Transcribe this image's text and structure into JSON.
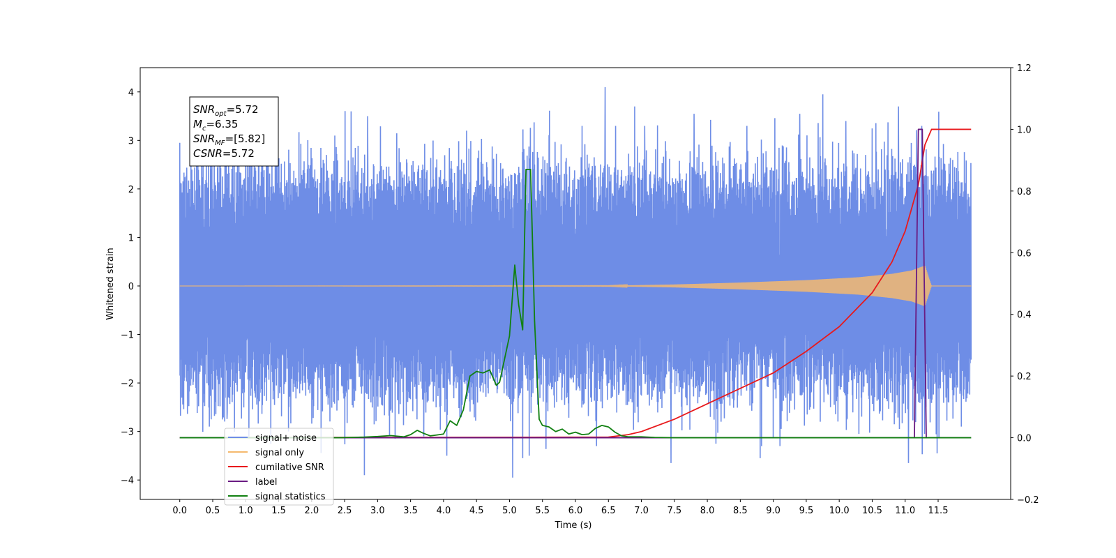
{
  "chart_data": {
    "type": "line",
    "xlabel": "Time (s)",
    "ylabel": "Whitened strain",
    "xlim": [
      -0.6,
      12.6
    ],
    "ylim": [
      -4.4,
      4.5
    ],
    "y2lim": [
      -0.2,
      1.2
    ],
    "x_ticks": [
      0.0,
      0.5,
      1.0,
      1.5,
      2.0,
      2.5,
      3.0,
      3.5,
      4.0,
      4.5,
      5.0,
      5.5,
      6.0,
      6.5,
      7.0,
      7.5,
      8.0,
      8.5,
      9.0,
      9.5,
      10.0,
      10.5,
      11.0,
      11.5
    ],
    "x_tick_labels": [
      "0.0",
      "0.5",
      "1.0",
      "1.5",
      "2.0",
      "2.5",
      "3.0",
      "3.5",
      "4.0",
      "4.5",
      "5.0",
      "5.5",
      "6.0",
      "6.5",
      "7.0",
      "7.5",
      "8.0",
      "8.5",
      "9.0",
      "9.5",
      "10.0",
      "10.5",
      "11.0",
      "11.5"
    ],
    "y_ticks": [
      -4,
      -3,
      -2,
      -1,
      0,
      1,
      2,
      3,
      4
    ],
    "y_tick_labels": [
      "−4",
      "−3",
      "−2",
      "−1",
      "0",
      "1",
      "2",
      "3",
      "4"
    ],
    "y2_ticks": [
      -0.2,
      0.0,
      0.2,
      0.4,
      0.6,
      0.8,
      1.0,
      1.2
    ],
    "y2_tick_labels": [
      "−0.2",
      "0.0",
      "0.2",
      "0.4",
      "0.6",
      "0.8",
      "1.0",
      "1.2"
    ],
    "grid": false,
    "legend_position": "lower-left",
    "annotation": {
      "lines": [
        {
          "sym": "SNR",
          "sub": "opt",
          "value": "=5.72"
        },
        {
          "sym": "M",
          "sub": "c",
          "value": "=6.35"
        },
        {
          "sym": "SNR",
          "sub": "MF",
          "value": "=[5.82]"
        },
        {
          "sym": "CSNR",
          "sub": "",
          "value": "=5.72"
        }
      ]
    },
    "series": [
      {
        "name": "signal+ noise",
        "color": "#6e8de6",
        "axis": "left",
        "kind": "noise",
        "x_range": [
          0.0,
          12.0
        ],
        "band": [
          -2.1,
          2.7
        ],
        "peaks": [
          {
            "x": 0.0,
            "y": 2.95
          },
          {
            "x": 0.45,
            "y": -2.9
          },
          {
            "x": 0.72,
            "y": -2.6
          },
          {
            "x": 1.2,
            "y": 2.8
          },
          {
            "x": 1.65,
            "y": -3.0
          },
          {
            "x": 2.35,
            "y": 3.1
          },
          {
            "x": 2.6,
            "y": 3.6
          },
          {
            "x": 2.8,
            "y": -3.9
          },
          {
            "x": 2.85,
            "y": 3.5
          },
          {
            "x": 3.7,
            "y": -3.1
          },
          {
            "x": 4.05,
            "y": -3.5
          },
          {
            "x": 4.35,
            "y": 3.2
          },
          {
            "x": 5.05,
            "y": -3.95
          },
          {
            "x": 5.2,
            "y": -3.55
          },
          {
            "x": 5.3,
            "y": -3.5
          },
          {
            "x": 6.1,
            "y": 3.3
          },
          {
            "x": 6.32,
            "y": -3.3
          },
          {
            "x": 6.45,
            "y": 4.1
          },
          {
            "x": 6.9,
            "y": 3.7
          },
          {
            "x": 7.05,
            "y": 3.3
          },
          {
            "x": 7.45,
            "y": -3.65
          },
          {
            "x": 7.8,
            "y": 3.55
          },
          {
            "x": 8.6,
            "y": 3.3
          },
          {
            "x": 8.8,
            "y": -3.55
          },
          {
            "x": 9.1,
            "y": -3.3
          },
          {
            "x": 9.4,
            "y": 3.55
          },
          {
            "x": 9.75,
            "y": 3.95
          },
          {
            "x": 10.1,
            "y": 3.4
          },
          {
            "x": 10.3,
            "y": -3.05
          },
          {
            "x": 10.9,
            "y": 3.7
          },
          {
            "x": 11.05,
            "y": -3.65
          },
          {
            "x": 11.25,
            "y": 3.3
          },
          {
            "x": 11.85,
            "y": -2.9
          }
        ]
      },
      {
        "name": "signal only",
        "color": "#f5b96e",
        "axis": "left",
        "kind": "chirp",
        "x_range": [
          0.0,
          12.0
        ],
        "envelope": [
          [
            0.0,
            0.0
          ],
          [
            6.5,
            0.005
          ],
          [
            7.5,
            0.03
          ],
          [
            8.5,
            0.07
          ],
          [
            9.5,
            0.12
          ],
          [
            10.3,
            0.18
          ],
          [
            10.8,
            0.25
          ],
          [
            11.1,
            0.32
          ],
          [
            11.3,
            0.42
          ],
          [
            11.4,
            0.0
          ],
          [
            12.0,
            0.0
          ]
        ]
      },
      {
        "name": "cumilative SNR",
        "color": "#e8191c",
        "axis": "right",
        "x": [
          0.0,
          6.5,
          6.8,
          7.0,
          7.5,
          8.0,
          8.5,
          9.0,
          9.5,
          10.0,
          10.5,
          10.8,
          11.0,
          11.2,
          11.3,
          11.4,
          12.0
        ],
        "y": [
          0.0,
          0.002,
          0.01,
          0.02,
          0.06,
          0.11,
          0.16,
          0.21,
          0.28,
          0.36,
          0.47,
          0.57,
          0.67,
          0.82,
          0.95,
          1.0,
          1.0
        ]
      },
      {
        "name": "label",
        "color": "#6a1b82",
        "axis": "right",
        "x": [
          0.0,
          11.14,
          11.2,
          11.26,
          11.32,
          11.38,
          12.0
        ],
        "y": [
          0.0,
          0.0,
          1.0,
          1.0,
          0.0,
          0.0,
          0.0
        ]
      },
      {
        "name": "signal statistics",
        "color": "#118011",
        "axis": "right",
        "x": [
          0.0,
          2.4,
          2.6,
          2.8,
          3.0,
          3.2,
          3.4,
          3.5,
          3.6,
          3.7,
          3.8,
          3.9,
          4.0,
          4.1,
          4.2,
          4.3,
          4.4,
          4.5,
          4.6,
          4.7,
          4.8,
          4.85,
          4.9,
          5.0,
          5.08,
          5.14,
          5.2,
          5.25,
          5.32,
          5.38,
          5.45,
          5.5,
          5.6,
          5.7,
          5.8,
          5.9,
          6.0,
          6.1,
          6.2,
          6.3,
          6.4,
          6.5,
          6.6,
          6.7,
          6.8,
          7.0,
          7.2,
          7.5,
          7.7,
          8.0,
          12.0
        ],
        "y": [
          0.0,
          0.0,
          0.001,
          0.002,
          0.004,
          0.007,
          0.003,
          0.01,
          0.024,
          0.014,
          0.006,
          0.009,
          0.012,
          0.055,
          0.04,
          0.09,
          0.2,
          0.215,
          0.21,
          0.22,
          0.17,
          0.18,
          0.23,
          0.33,
          0.56,
          0.43,
          0.35,
          0.87,
          0.87,
          0.38,
          0.06,
          0.04,
          0.035,
          0.02,
          0.028,
          0.012,
          0.018,
          0.01,
          0.012,
          0.03,
          0.04,
          0.035,
          0.018,
          0.006,
          0.003,
          0.003,
          0.001,
          0.0,
          0.0,
          0.0,
          0.0
        ]
      }
    ],
    "legend": [
      {
        "label": "signal+ noise",
        "color": "#6e8de6"
      },
      {
        "label": "signal only",
        "color": "#f5b96e"
      },
      {
        "label": "cumilative SNR",
        "color": "#e8191c"
      },
      {
        "label": "label",
        "color": "#6a1b82"
      },
      {
        "label": "signal statistics",
        "color": "#118011"
      }
    ]
  }
}
